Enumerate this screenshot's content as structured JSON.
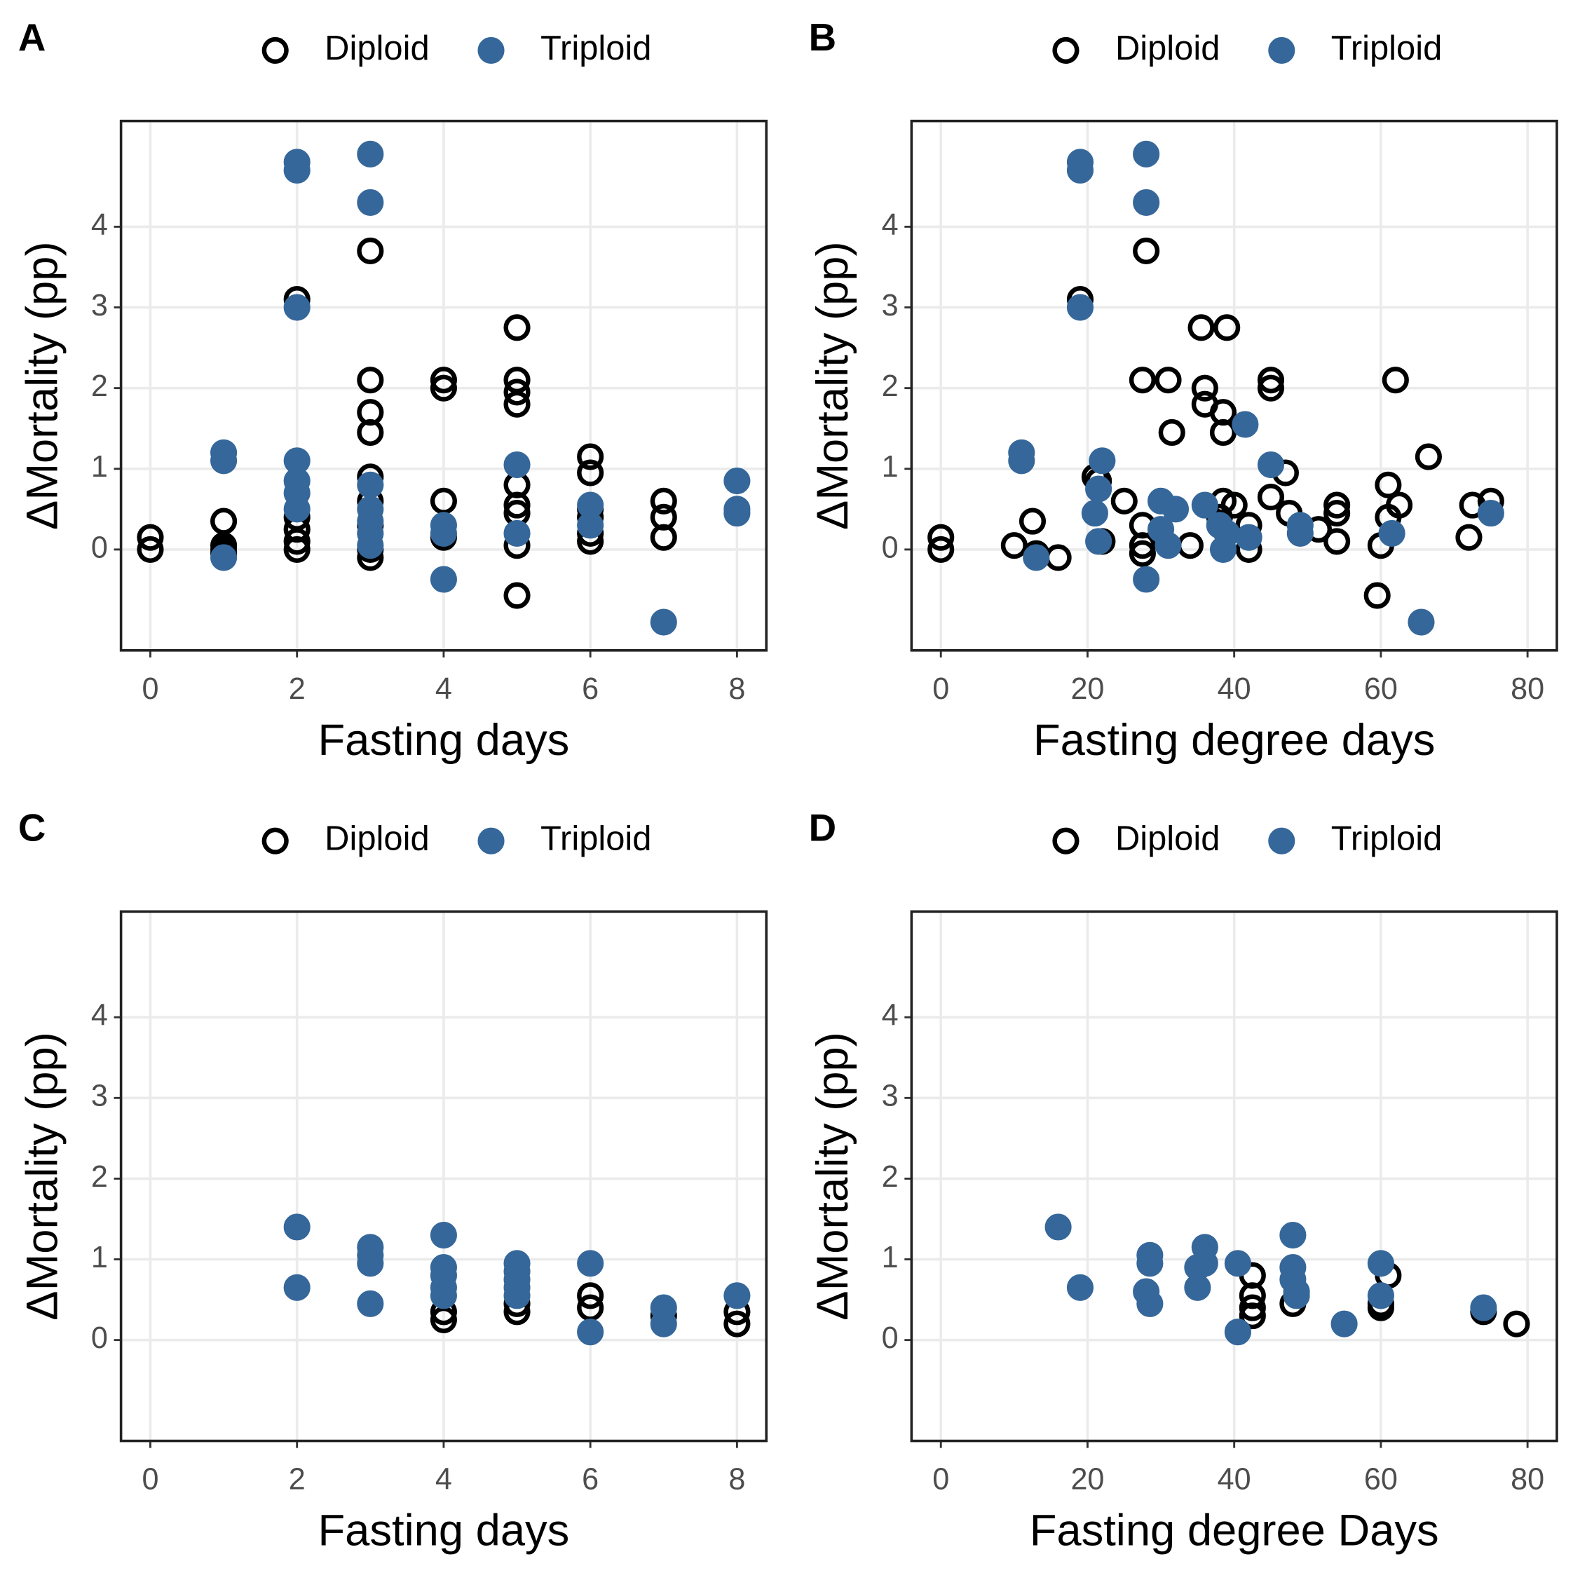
{
  "chart_data": [
    {
      "type": "scatter",
      "panel": "A",
      "xlabel": "Fasting days",
      "ylabel": "ΔMortality (pp)",
      "xlim": [
        -0.4,
        8.4
      ],
      "ylim": [
        -1.25,
        5.31
      ],
      "xticks": [
        0,
        2,
        4,
        6,
        8
      ],
      "yticks": [
        0,
        1,
        2,
        3,
        4
      ],
      "grid": true,
      "series": [
        {
          "name": "Diploid",
          "color": "#000000",
          "filled": false,
          "x": [
            0,
            0,
            1,
            1,
            1,
            1,
            2,
            2,
            2,
            2,
            2,
            3,
            3,
            3,
            3,
            3,
            3,
            3,
            3,
            3,
            4,
            4,
            4,
            4,
            5,
            5,
            5,
            5,
            5,
            5,
            5,
            5,
            5,
            6,
            6,
            6,
            6,
            6,
            6,
            7,
            7,
            7
          ],
          "values": [
            0.15,
            0,
            0.35,
            0.05,
            0,
            -0.05,
            3.1,
            0.4,
            0.25,
            0.1,
            0,
            3.7,
            2.1,
            1.7,
            1.45,
            0.9,
            0.6,
            0.3,
            0,
            -0.1,
            2.1,
            2.0,
            0.6,
            0.15,
            2.75,
            2.1,
            1.95,
            1.8,
            0.8,
            0.55,
            0.45,
            0.05,
            -0.57,
            1.15,
            0.95,
            0.5,
            0.4,
            0.2,
            0.1,
            0.6,
            0.4,
            0.15
          ]
        },
        {
          "name": "Triploid",
          "color": "#35679a",
          "filled": true,
          "x": [
            1,
            1,
            1,
            2,
            2,
            2,
            2,
            2,
            2,
            2,
            3,
            3,
            3,
            3,
            3,
            3,
            3,
            4,
            4,
            4,
            5,
            5,
            6,
            6,
            7,
            8,
            8,
            8
          ],
          "values": [
            1.2,
            1.1,
            -0.1,
            4.8,
            4.7,
            3.0,
            1.1,
            0.85,
            0.7,
            0.5,
            4.9,
            4.3,
            0.8,
            0.5,
            0.35,
            0.2,
            0.05,
            0.3,
            0.2,
            -0.37,
            1.05,
            0.2,
            0.55,
            0.3,
            -0.9,
            0.85,
            0.5,
            0.45
          ]
        }
      ]
    },
    {
      "type": "scatter",
      "panel": "B",
      "xlabel": "Fasting degree days",
      "ylabel": "ΔMortality (pp)",
      "xlim": [
        -4,
        84
      ],
      "ylim": [
        -1.25,
        5.31
      ],
      "xticks": [
        0,
        20,
        40,
        60,
        80
      ],
      "yticks": [
        0,
        1,
        2,
        3,
        4
      ],
      "grid": true,
      "series": [
        {
          "name": "Diploid",
          "color": "#000000",
          "filled": false,
          "x": [
            0,
            0,
            10,
            12.5,
            13,
            16,
            19,
            21,
            21.5,
            22,
            25,
            27.5,
            27.5,
            27.5,
            27.5,
            28,
            31,
            31.5,
            34,
            35.5,
            36,
            36,
            38.5,
            38.5,
            38.5,
            38,
            39,
            40,
            42,
            42,
            45,
            45,
            45,
            47,
            47.5,
            51.5,
            54,
            54,
            54,
            59.5,
            60,
            61,
            61,
            62,
            62.5,
            66.5,
            72,
            72.5,
            75
          ],
          "values": [
            0.15,
            0,
            0.05,
            0.35,
            -0.05,
            -0.1,
            3.1,
            0.9,
            0.85,
            0.1,
            0.6,
            0.3,
            0.05,
            -0.05,
            2.1,
            3.7,
            2.1,
            1.45,
            0.05,
            2.75,
            2.0,
            1.8,
            1.7,
            1.45,
            0.6,
            0.4,
            2.75,
            0.55,
            0.3,
            0,
            2.1,
            2.0,
            0.65,
            0.95,
            0.45,
            0.25,
            0.55,
            0.45,
            0.1,
            -0.57,
            0.05,
            0.8,
            0.4,
            2.1,
            0.55,
            1.15,
            0.15,
            0.55,
            0.6
          ]
        },
        {
          "name": "Triploid",
          "color": "#35679a",
          "filled": true,
          "x": [
            11,
            11,
            13,
            19,
            19,
            19,
            21,
            21.5,
            21.5,
            22,
            28,
            28,
            28,
            30,
            30,
            31,
            32,
            36,
            38,
            38.5,
            39,
            41.5,
            42,
            45,
            49,
            49,
            61.5,
            65.5,
            75
          ],
          "values": [
            1.2,
            1.1,
            -0.1,
            4.8,
            4.7,
            3.0,
            0.45,
            0.75,
            0.1,
            1.1,
            4.9,
            4.3,
            -0.37,
            0.6,
            0.25,
            0.05,
            0.5,
            0.55,
            0.3,
            0,
            0.2,
            1.55,
            0.15,
            1.05,
            0.2,
            0.3,
            0.2,
            -0.9,
            0.45
          ]
        }
      ]
    },
    {
      "type": "scatter",
      "panel": "C",
      "xlabel": "Fasting days",
      "ylabel": "ΔMortality (pp)",
      "xlim": [
        -0.4,
        8.4
      ],
      "ylim": [
        -1.25,
        5.31
      ],
      "xticks": [
        0,
        2,
        4,
        6,
        8
      ],
      "yticks": [
        0,
        1,
        2,
        3,
        4
      ],
      "grid": true,
      "series": [
        {
          "name": "Diploid",
          "color": "#000000",
          "filled": false,
          "x": [
            4,
            4,
            5,
            5,
            6,
            6,
            7,
            8,
            8
          ],
          "values": [
            0.35,
            0.25,
            0.45,
            0.35,
            0.55,
            0.4,
            0.3,
            0.35,
            0.2
          ]
        },
        {
          "name": "Triploid",
          "color": "#35679a",
          "filled": true,
          "x": [
            2,
            2,
            3,
            3,
            3,
            3,
            4,
            4,
            4,
            4,
            4,
            5,
            5,
            5,
            5,
            5,
            6,
            6,
            7,
            7,
            8
          ],
          "values": [
            1.4,
            0.65,
            1.15,
            1.05,
            0.95,
            0.45,
            1.3,
            0.9,
            0.8,
            0.65,
            0.55,
            0.95,
            0.85,
            0.75,
            0.65,
            0.55,
            0.95,
            0.1,
            0.4,
            0.2,
            0.55
          ]
        }
      ]
    },
    {
      "type": "scatter",
      "panel": "D",
      "xlabel": "Fasting degree Days",
      "ylabel": "ΔMortality (pp)",
      "xlim": [
        -4,
        84
      ],
      "ylim": [
        -1.25,
        5.31
      ],
      "xticks": [
        0,
        20,
        40,
        60,
        80
      ],
      "yticks": [
        0,
        1,
        2,
        3,
        4
      ],
      "grid": true,
      "series": [
        {
          "name": "Diploid",
          "color": "#000000",
          "filled": false,
          "x": [
            42.5,
            42.5,
            42.5,
            42.5,
            48,
            60,
            60,
            61,
            74,
            78.5
          ],
          "values": [
            0.8,
            0.55,
            0.4,
            0.3,
            0.45,
            0.45,
            0.4,
            0.8,
            0.35,
            0.2
          ]
        },
        {
          "name": "Triploid",
          "color": "#35679a",
          "filled": true,
          "x": [
            16,
            19,
            28.5,
            28.5,
            28,
            28.5,
            35,
            35,
            36,
            36,
            40.5,
            40.5,
            48,
            48,
            48,
            48.5,
            48.5,
            55,
            60,
            60,
            74
          ],
          "values": [
            1.4,
            0.65,
            1.05,
            0.95,
            0.6,
            0.45,
            0.9,
            0.65,
            1.15,
            0.95,
            0.95,
            0.1,
            1.3,
            0.9,
            0.75,
            0.6,
            0.55,
            0.2,
            0.95,
            0.55,
            0.4
          ]
        }
      ]
    }
  ]
}
